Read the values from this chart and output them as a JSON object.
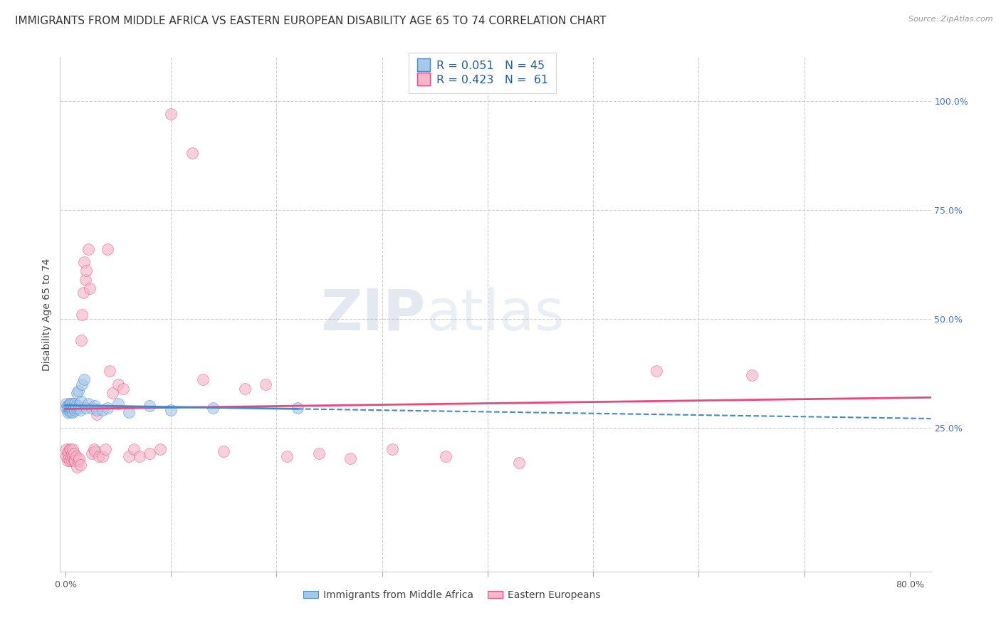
{
  "title": "IMMIGRANTS FROM MIDDLE AFRICA VS EASTERN EUROPEAN DISABILITY AGE 65 TO 74 CORRELATION CHART",
  "source": "Source: ZipAtlas.com",
  "ylabel": "Disability Age 65 to 74",
  "xlim": [
    -0.005,
    0.82
  ],
  "ylim": [
    -0.08,
    1.1
  ],
  "color_blue": "#a8c8e8",
  "color_pink": "#f4b8c8",
  "color_blue_line": "#4488cc",
  "color_pink_line": "#e84880",
  "watermark_zip": "ZIP",
  "watermark_atlas": "atlas",
  "grid_color": "#cccccc",
  "background_color": "#ffffff",
  "title_fontsize": 11,
  "axis_label_fontsize": 10,
  "tick_fontsize": 9,
  "legend_text1": "R = 0.051   N = 45",
  "legend_text2": "R = 0.423   N =  61",
  "blue_scatter_x": [
    0.001,
    0.001,
    0.002,
    0.002,
    0.003,
    0.003,
    0.003,
    0.004,
    0.004,
    0.004,
    0.005,
    0.005,
    0.005,
    0.006,
    0.006,
    0.007,
    0.007,
    0.007,
    0.008,
    0.008,
    0.009,
    0.009,
    0.01,
    0.01,
    0.011,
    0.012,
    0.013,
    0.013,
    0.014,
    0.015,
    0.016,
    0.018,
    0.02,
    0.022,
    0.025,
    0.028,
    0.03,
    0.035,
    0.04,
    0.05,
    0.06,
    0.08,
    0.1,
    0.14,
    0.22
  ],
  "blue_scatter_y": [
    0.295,
    0.305,
    0.285,
    0.3,
    0.29,
    0.3,
    0.295,
    0.29,
    0.305,
    0.295,
    0.285,
    0.295,
    0.305,
    0.29,
    0.3,
    0.285,
    0.295,
    0.305,
    0.3,
    0.295,
    0.29,
    0.305,
    0.295,
    0.3,
    0.33,
    0.335,
    0.3,
    0.295,
    0.29,
    0.31,
    0.35,
    0.36,
    0.295,
    0.305,
    0.295,
    0.3,
    0.29,
    0.29,
    0.295,
    0.305,
    0.285,
    0.3,
    0.29,
    0.295,
    0.295
  ],
  "pink_scatter_x": [
    0.001,
    0.001,
    0.002,
    0.002,
    0.003,
    0.003,
    0.004,
    0.004,
    0.005,
    0.005,
    0.006,
    0.006,
    0.007,
    0.007,
    0.008,
    0.008,
    0.009,
    0.01,
    0.011,
    0.012,
    0.013,
    0.014,
    0.015,
    0.016,
    0.017,
    0.018,
    0.019,
    0.02,
    0.022,
    0.023,
    0.025,
    0.027,
    0.028,
    0.03,
    0.032,
    0.035,
    0.038,
    0.04,
    0.042,
    0.045,
    0.05,
    0.055,
    0.06,
    0.065,
    0.07,
    0.08,
    0.09,
    0.1,
    0.12,
    0.13,
    0.15,
    0.17,
    0.19,
    0.21,
    0.24,
    0.27,
    0.31,
    0.36,
    0.43,
    0.56,
    0.65
  ],
  "pink_scatter_y": [
    0.185,
    0.2,
    0.175,
    0.19,
    0.18,
    0.195,
    0.175,
    0.2,
    0.185,
    0.2,
    0.175,
    0.19,
    0.185,
    0.2,
    0.175,
    0.19,
    0.175,
    0.185,
    0.16,
    0.175,
    0.18,
    0.165,
    0.45,
    0.51,
    0.56,
    0.63,
    0.59,
    0.61,
    0.66,
    0.57,
    0.19,
    0.2,
    0.195,
    0.28,
    0.185,
    0.185,
    0.2,
    0.66,
    0.38,
    0.33,
    0.35,
    0.34,
    0.185,
    0.2,
    0.185,
    0.19,
    0.2,
    0.97,
    0.88,
    0.36,
    0.195,
    0.34,
    0.35,
    0.185,
    0.19,
    0.18,
    0.2,
    0.185,
    0.17,
    0.38,
    0.37
  ]
}
